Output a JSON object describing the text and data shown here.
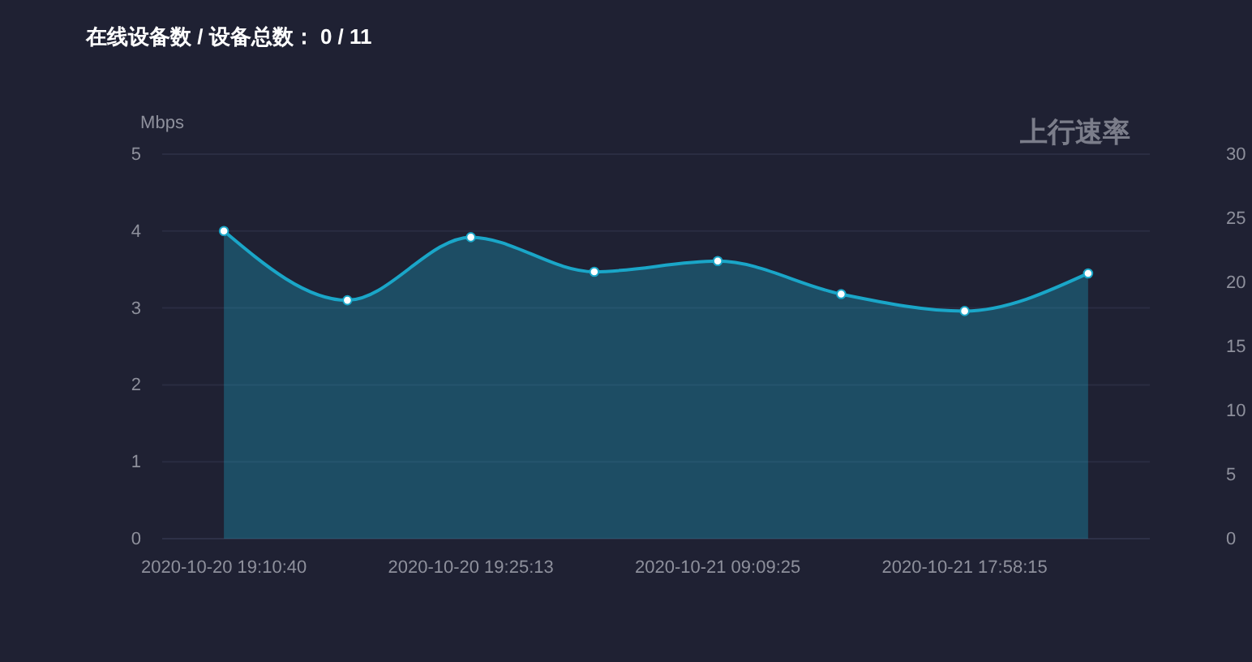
{
  "chart_data": {
    "type": "area",
    "title": "在线设备数 / 设备总数： 0 / 11",
    "subtitle": "上行速率",
    "ylabel": "Mbps",
    "categories": [
      "2020-10-20 19:10:40",
      null,
      "2020-10-20 19:25:13",
      null,
      "2020-10-21 09:09:25",
      null,
      "2020-10-21 17:58:15",
      null
    ],
    "series": [
      {
        "color": "#1aa6c8",
        "values": [
          4.0,
          3.1,
          3.92,
          3.47,
          3.61,
          3.18,
          2.96,
          3.45
        ]
      }
    ],
    "ylim": [
      0,
      5
    ],
    "yticks": [
      0,
      1,
      2,
      3,
      4,
      5
    ],
    "y2lim": [
      0,
      30
    ],
    "y2ticks": [
      0,
      5,
      10,
      15,
      20,
      25,
      30
    ],
    "grid": "y",
    "marker": "circle"
  }
}
